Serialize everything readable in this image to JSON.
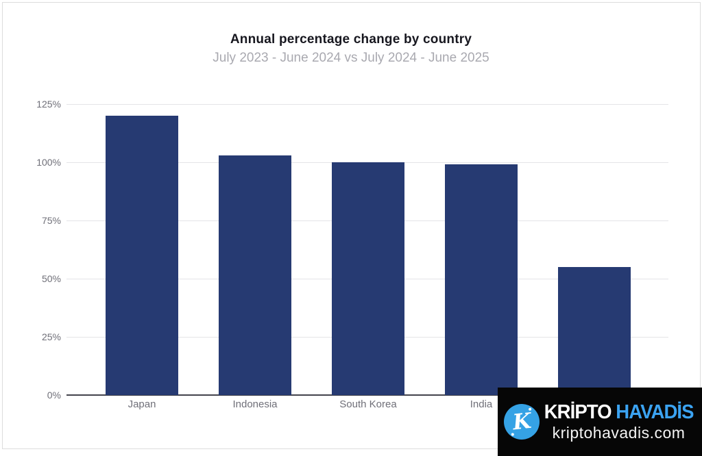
{
  "chart_data": {
    "type": "bar",
    "title": "Annual percentage change by country",
    "subtitle": "July 2023 - June 2024 vs July 2024 - June 2025",
    "categories": [
      "Japan",
      "Indonesia",
      "South Korea",
      "India",
      ""
    ],
    "values": [
      120,
      103,
      100,
      99,
      55
    ],
    "unit": "%",
    "xlabel": "",
    "ylabel": "",
    "ylim": [
      0,
      125
    ],
    "yticks": [
      0,
      25,
      50,
      75,
      100,
      125
    ],
    "ytick_labels": [
      "0%",
      "25%",
      "50%",
      "75%",
      "100%",
      "125%"
    ],
    "grid": "horizontal gridlines on, 25% steps",
    "legend": "none",
    "bar_color": "#263a72"
  },
  "colors": {
    "title": "#17171f",
    "subtitle": "#a9a9b0",
    "axis_label": "#6f6f78",
    "gridline": "#e4e4e7",
    "axis_line": "#43434c",
    "bar": "#263a72",
    "watermark_bg": "#060606",
    "watermark_accent": "#3ba3f2",
    "logo_circle": "#35a2e5"
  },
  "watermark": {
    "brand_first": "KRİPTO",
    "brand_second": "HAVADİS",
    "site": "kriptohavadis.com",
    "logo_letter": "K"
  }
}
